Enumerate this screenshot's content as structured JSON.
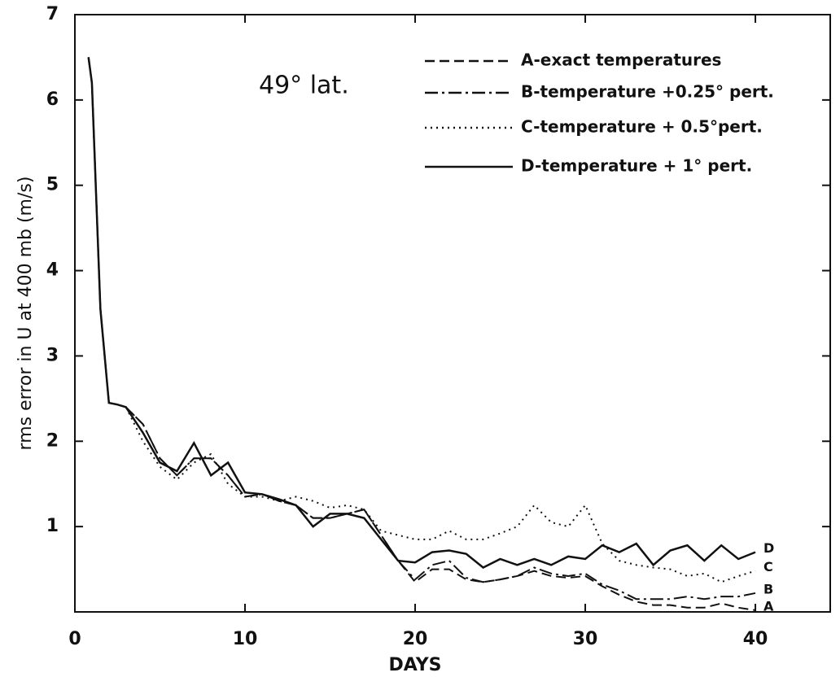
{
  "chart_data": {
    "type": "line",
    "annotation": "49° lat.",
    "x_label": "DAYS",
    "y_label": "rms error in U at 400 mb (m/s)",
    "xlim": [
      0,
      44.4
    ],
    "ylim": [
      0,
      7
    ],
    "xticks": [
      0,
      10,
      20,
      30,
      40
    ],
    "yticks": [
      1,
      2,
      3,
      4,
      5,
      6,
      7
    ],
    "x": [
      0.8,
      1,
      1.5,
      2,
      2.5,
      3,
      4,
      5,
      6,
      7,
      8,
      9,
      10,
      11,
      12,
      13,
      14,
      15,
      16,
      17,
      18,
      19,
      20,
      21,
      22,
      23,
      24,
      25,
      26,
      27,
      28,
      29,
      30,
      31,
      32,
      33,
      34,
      35,
      36,
      37,
      38,
      39,
      40
    ],
    "series": [
      {
        "name": "A-exact temperatures",
        "end_label": "A",
        "color": "#111111",
        "line_style": "dashed",
        "values": [
          6.5,
          6.2,
          3.55,
          2.45,
          2.43,
          2.4,
          2.2,
          1.8,
          1.6,
          1.8,
          1.8,
          1.6,
          1.35,
          1.38,
          1.3,
          1.25,
          1.1,
          1.1,
          1.15,
          1.2,
          0.9,
          0.6,
          0.35,
          0.5,
          0.5,
          0.38,
          0.35,
          0.38,
          0.42,
          0.48,
          0.42,
          0.4,
          0.42,
          0.3,
          0.2,
          0.12,
          0.08,
          0.08,
          0.05,
          0.05,
          0.1,
          0.05,
          0.02
        ]
      },
      {
        "name": "B-temperature +0.25° pert.",
        "end_label": "B",
        "color": "#111111",
        "line_style": "dashdot",
        "values": [
          6.5,
          6.2,
          3.55,
          2.45,
          2.43,
          2.4,
          2.2,
          1.8,
          1.6,
          1.8,
          1.8,
          1.6,
          1.35,
          1.38,
          1.3,
          1.25,
          1.1,
          1.1,
          1.15,
          1.2,
          0.9,
          0.6,
          0.38,
          0.55,
          0.6,
          0.4,
          0.35,
          0.38,
          0.42,
          0.52,
          0.45,
          0.42,
          0.45,
          0.32,
          0.25,
          0.15,
          0.15,
          0.15,
          0.18,
          0.15,
          0.18,
          0.18,
          0.22
        ]
      },
      {
        "name": "C-temperature + 0.5°pert.",
        "end_label": "C",
        "color": "#111111",
        "line_style": "dotted",
        "values": [
          6.5,
          6.2,
          3.55,
          2.45,
          2.43,
          2.4,
          2.0,
          1.7,
          1.55,
          1.75,
          1.85,
          1.5,
          1.35,
          1.35,
          1.3,
          1.35,
          1.3,
          1.22,
          1.25,
          1.2,
          0.95,
          0.9,
          0.85,
          0.85,
          0.95,
          0.85,
          0.85,
          0.92,
          1.0,
          1.25,
          1.05,
          1.0,
          1.25,
          0.8,
          0.6,
          0.55,
          0.52,
          0.5,
          0.42,
          0.45,
          0.35,
          0.42,
          0.48
        ]
      },
      {
        "name": "D-temperature + 1° pert.",
        "end_label": "D",
        "color": "#111111",
        "line_style": "solid",
        "values": [
          6.5,
          6.2,
          3.55,
          2.45,
          2.43,
          2.4,
          2.1,
          1.75,
          1.65,
          1.98,
          1.6,
          1.75,
          1.4,
          1.38,
          1.32,
          1.25,
          1.0,
          1.15,
          1.15,
          1.1,
          0.85,
          0.6,
          0.58,
          0.7,
          0.72,
          0.68,
          0.52,
          0.62,
          0.55,
          0.62,
          0.55,
          0.65,
          0.62,
          0.78,
          0.7,
          0.8,
          0.55,
          0.72,
          0.78,
          0.6,
          0.78,
          0.62,
          0.7
        ]
      }
    ]
  }
}
